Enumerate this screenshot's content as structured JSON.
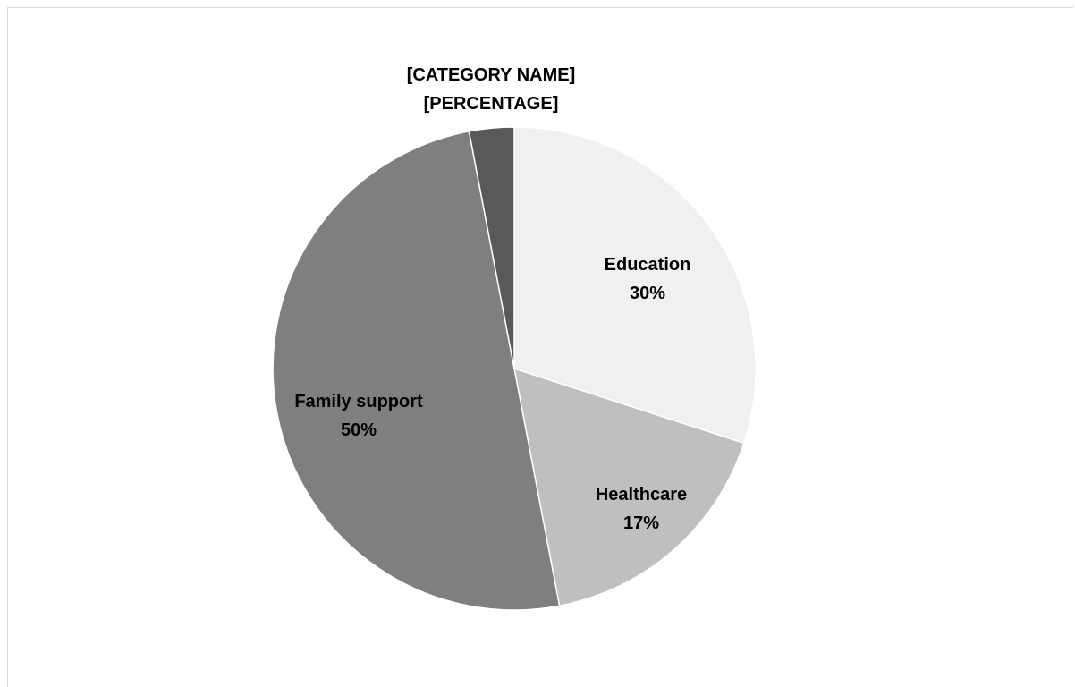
{
  "chart_data": {
    "type": "pie",
    "title": "",
    "slices": [
      {
        "category": "Education",
        "value": 30,
        "label_line1": "Education",
        "label_line2": "30%",
        "color": "#f0f0f0"
      },
      {
        "category": "Healthcare",
        "value": 17,
        "label_line1": "Healthcare",
        "label_line2": "17%",
        "color": "#bfbfbf"
      },
      {
        "category": "Family support",
        "value": 50,
        "label_line1": "Family support",
        "label_line2": "50%",
        "color": "#7f7f7f"
      },
      {
        "category": "[CATEGORY NAME]",
        "value": 3,
        "label_line1": "[CATEGORY NAME]",
        "label_line2": "[PERCENTAGE]",
        "color": "#595959"
      }
    ],
    "start_angle_deg": 0,
    "direction": "clockwise",
    "legend": "none"
  }
}
